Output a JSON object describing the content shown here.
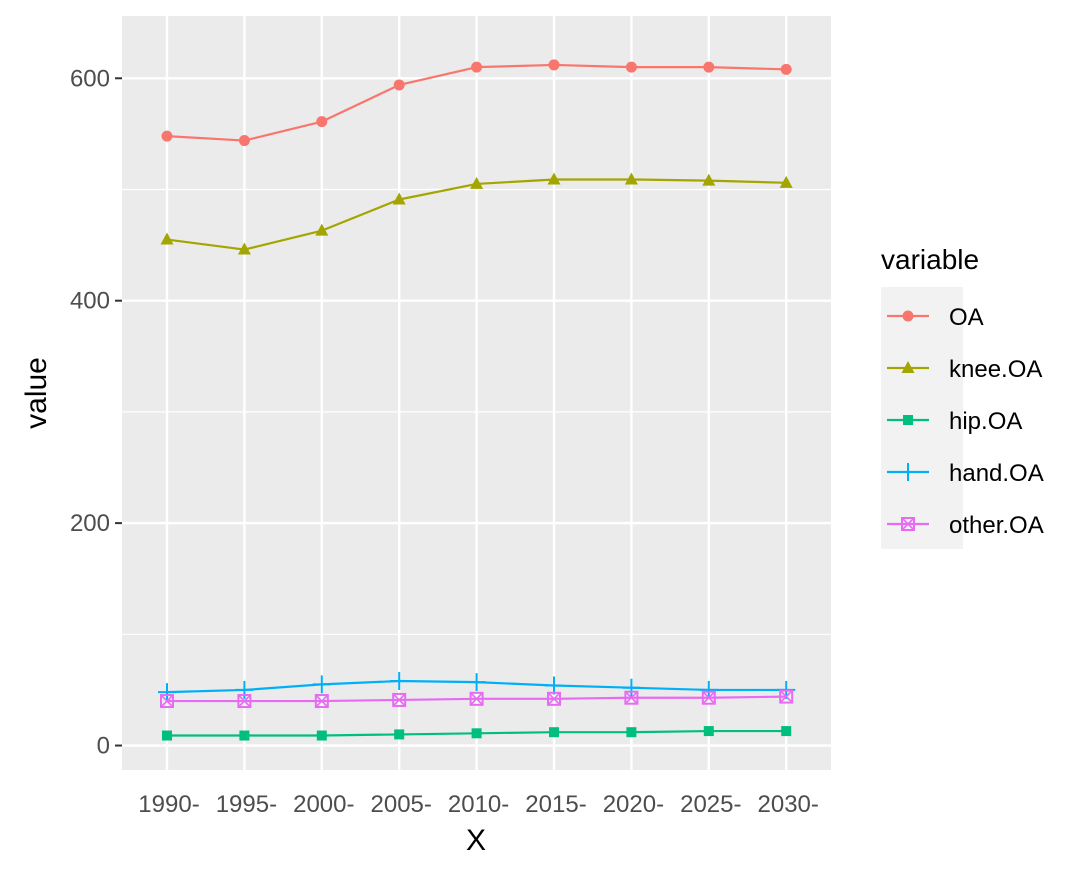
{
  "chart_data": {
    "type": "line",
    "xlabel": "X",
    "ylabel": "value",
    "x": [
      "1990",
      "1995",
      "2000",
      "2005",
      "2010",
      "2015",
      "2020",
      "2025",
      "2030"
    ],
    "x_tick_labels": [
      "1990-",
      "1995-",
      "2000-",
      "2005-",
      "2010-",
      "2015-",
      "2020-",
      "2025-",
      "2030-"
    ],
    "y_ticks": [
      0,
      200,
      400,
      600
    ],
    "y_tick_labels": [
      "0",
      "200",
      "400",
      "600"
    ],
    "ylim": [
      -22,
      656
    ],
    "grid": true,
    "legend": {
      "title": "variable",
      "position": "right"
    },
    "series": [
      {
        "name": "OA",
        "color": "#F8766D",
        "marker": "circle",
        "values": [
          548,
          544,
          561,
          594,
          610,
          612,
          610,
          610,
          608
        ]
      },
      {
        "name": "knee.OA",
        "color": "#A3A500",
        "marker": "triangle",
        "values": [
          455,
          446,
          463,
          491,
          505,
          509,
          509,
          508,
          506
        ]
      },
      {
        "name": "hip.OA",
        "color": "#00BF7D",
        "marker": "square",
        "values": [
          9,
          9,
          9,
          10,
          11,
          12,
          12,
          13,
          13
        ]
      },
      {
        "name": "hand.OA",
        "color": "#00B0F6",
        "marker": "plus",
        "values": [
          48,
          50,
          55,
          58,
          57,
          54,
          52,
          50,
          50
        ]
      },
      {
        "name": "other.OA",
        "color": "#E76BF3",
        "marker": "square-cross",
        "values": [
          40,
          40,
          40,
          41,
          42,
          42,
          43,
          43,
          44
        ]
      }
    ]
  }
}
